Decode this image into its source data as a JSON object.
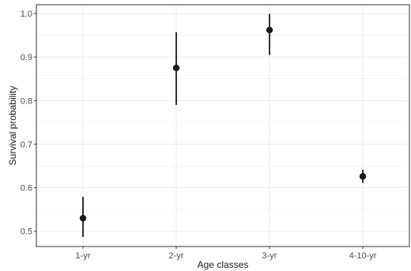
{
  "chart_data": {
    "type": "scatter",
    "title": "",
    "xlabel": "Age classes",
    "ylabel": "Survival probability",
    "categories": [
      "1-yr",
      "2-yr",
      "3-yr",
      "4-10-yr"
    ],
    "series": [
      {
        "values": [
          0.53,
          0.875,
          0.962,
          0.626
        ],
        "lower": [
          0.487,
          0.79,
          0.905,
          0.611
        ],
        "upper": [
          0.579,
          0.957,
          0.999,
          0.641
        ]
      }
    ],
    "ylim": [
      0.465,
      1.02
    ],
    "yticks": [
      0.5,
      0.6,
      0.7,
      0.8,
      0.9,
      1.0
    ],
    "ytick_labels": [
      "0.5",
      "0.6",
      "0.7",
      "0.8",
      "0.9",
      "1.0"
    ],
    "grid": true,
    "point_color": "#1a1a1a",
    "grid_color": "#ebebeb",
    "panel_border_color": "#333333"
  }
}
